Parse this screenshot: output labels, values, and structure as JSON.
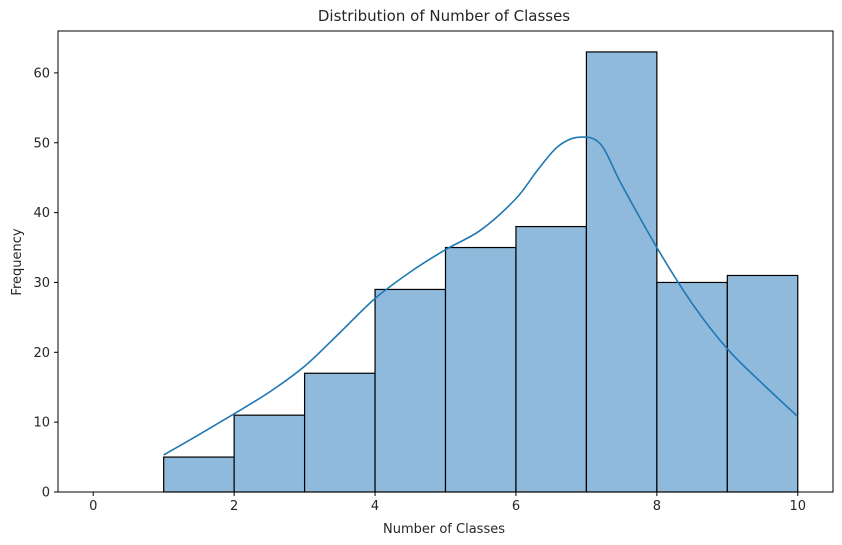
{
  "chart_data": {
    "type": "bar",
    "title": "Distribution of Number of Classes",
    "xlabel": "Number of Classes",
    "ylabel": "Frequency",
    "xlim": [
      -0.5,
      10.5
    ],
    "ylim": [
      0,
      66
    ],
    "xticks": [
      0,
      2,
      4,
      6,
      8,
      10
    ],
    "yticks": [
      0,
      10,
      20,
      30,
      40,
      50,
      60
    ],
    "bins": [
      {
        "start": 0,
        "end": 1,
        "count": 0
      },
      {
        "start": 1,
        "end": 2,
        "count": 5
      },
      {
        "start": 2,
        "end": 3,
        "count": 11
      },
      {
        "start": 3,
        "end": 4,
        "count": 17
      },
      {
        "start": 4,
        "end": 5,
        "count": 29
      },
      {
        "start": 5,
        "end": 6,
        "count": 35
      },
      {
        "start": 6,
        "end": 7,
        "count": 38
      },
      {
        "start": 7,
        "end": 8,
        "count": 63
      },
      {
        "start": 8,
        "end": 9,
        "count": 30
      },
      {
        "start": 9,
        "end": 10,
        "count": 31
      }
    ],
    "kde": {
      "x": [
        1,
        1.5,
        2,
        2.5,
        3,
        3.5,
        4,
        4.5,
        5,
        5.5,
        6,
        6.3,
        6.6,
        6.9,
        7.2,
        7.5,
        8,
        8.5,
        9,
        9.5,
        10
      ],
      "y": [
        5.3,
        8.2,
        11.2,
        14.3,
        18.0,
        22.8,
        27.7,
        31.5,
        34.7,
        37.5,
        42.0,
        46.0,
        49.5,
        50.8,
        49.8,
        44.0,
        35.0,
        27.0,
        20.5,
        15.5,
        10.8
      ]
    },
    "colors": {
      "bar_fill": "#8fbadb",
      "bar_edge": "#000000",
      "kde_line": "#1f77b4"
    },
    "grid": false,
    "legend": "none"
  }
}
